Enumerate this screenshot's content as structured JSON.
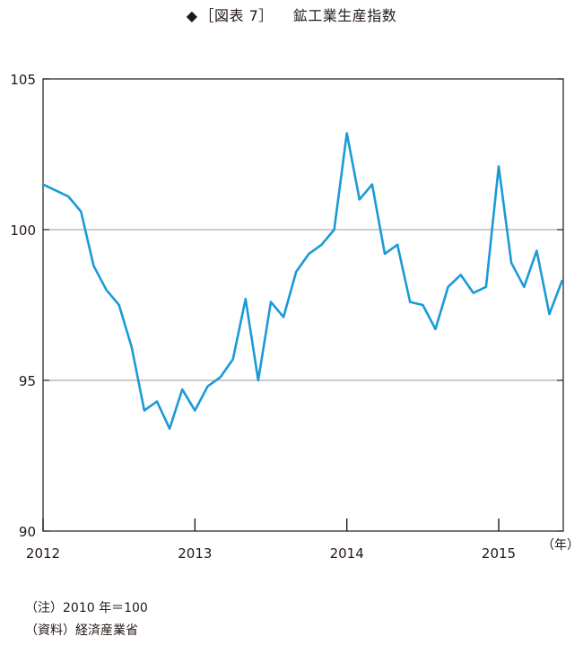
{
  "header": {
    "marker": "◆",
    "figure_label": "［図表 7］",
    "title": "鉱工業生産指数"
  },
  "chart_data": {
    "type": "line",
    "title": "鉱工業生産指数",
    "xlabel": "（年）",
    "ylabel": "",
    "ylim": [
      90,
      105
    ],
    "yticks": [
      90,
      95,
      100,
      105
    ],
    "xticks": [
      {
        "label": "2012",
        "index": 0
      },
      {
        "label": "2013",
        "index": 12
      },
      {
        "label": "2014",
        "index": 24
      },
      {
        "label": "2015",
        "index": 36
      }
    ],
    "grid": "horizontal",
    "x": [
      "2012-01",
      "2012-02",
      "2012-03",
      "2012-04",
      "2012-05",
      "2012-06",
      "2012-07",
      "2012-08",
      "2012-09",
      "2012-10",
      "2012-11",
      "2012-12",
      "2013-01",
      "2013-02",
      "2013-03",
      "2013-04",
      "2013-05",
      "2013-06",
      "2013-07",
      "2013-08",
      "2013-09",
      "2013-10",
      "2013-11",
      "2013-12",
      "2014-01",
      "2014-02",
      "2014-03",
      "2014-04",
      "2014-05",
      "2014-06",
      "2014-07",
      "2014-08",
      "2014-09",
      "2014-10",
      "2014-11",
      "2014-12",
      "2015-01",
      "2015-02",
      "2015-03",
      "2015-04",
      "2015-05",
      "2015-06"
    ],
    "series": [
      {
        "name": "",
        "color": "#1a9ad6",
        "values": [
          101.5,
          101.3,
          101.1,
          100.6,
          98.8,
          98.0,
          97.5,
          96.1,
          94.0,
          94.3,
          93.4,
          94.7,
          94.0,
          94.8,
          95.1,
          95.7,
          97.7,
          95.0,
          97.6,
          97.1,
          98.6,
          99.2,
          99.5,
          100.0,
          103.2,
          101.0,
          101.5,
          99.2,
          99.5,
          97.6,
          97.5,
          96.7,
          98.1,
          98.5,
          97.9,
          98.1,
          102.1,
          98.9,
          98.1,
          99.3,
          97.2,
          98.3
        ]
      }
    ]
  },
  "notes": [
    "（注）2010 年＝100",
    "（資料）経済産業省"
  ]
}
